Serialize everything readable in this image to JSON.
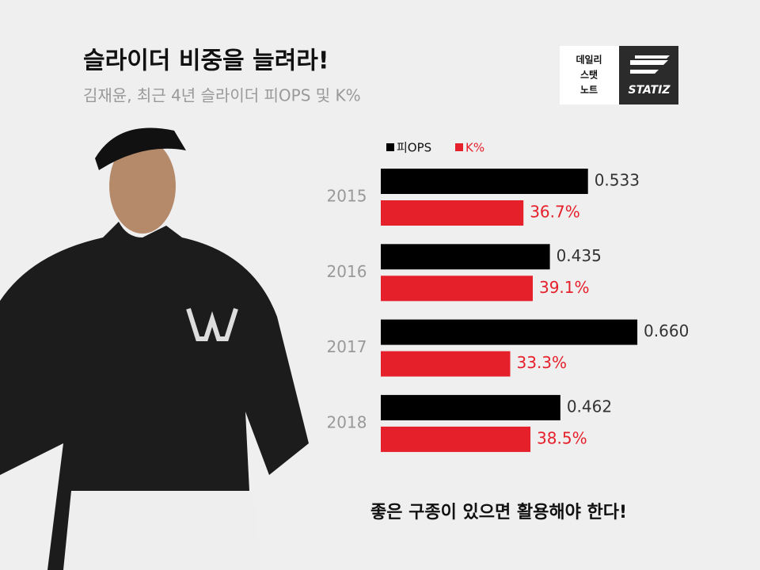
{
  "header": {
    "title": "슬라이더 비중을 늘려라!",
    "subtitle": "김재윤, 최근 4년 슬라이더 피OPS 및 K%"
  },
  "logo": {
    "lines": [
      "데일리",
      "스탯",
      "노트"
    ],
    "brand": "STATIZ"
  },
  "chart_data": {
    "type": "bar",
    "orientation": "horizontal",
    "categories": [
      "2015",
      "2016",
      "2017",
      "2018"
    ],
    "series": [
      {
        "name": "피OPS",
        "color": "#000000",
        "values": [
          0.533,
          0.435,
          0.66,
          0.462
        ],
        "value_labels": [
          "0.533",
          "0.435",
          "0.660",
          "0.462"
        ]
      },
      {
        "name": "K%",
        "color": "#e5202b",
        "values": [
          36.7,
          39.1,
          33.3,
          38.5
        ],
        "value_labels": [
          "36.7%",
          "39.1%",
          "33.3%",
          "38.5%"
        ]
      }
    ]
  },
  "footer": {
    "caption": "좋은 구종이 있으면 활용해야 한다!"
  }
}
